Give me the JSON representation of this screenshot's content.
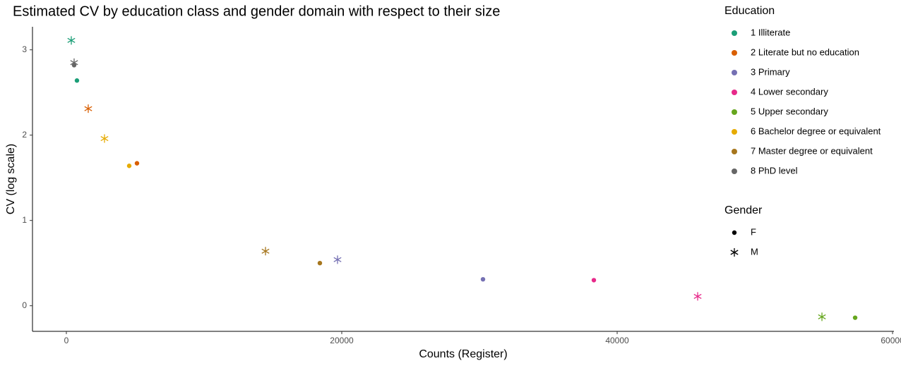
{
  "chart_data": {
    "type": "scatter",
    "title": "Estimated CV by education class and gender domain with respect to their size",
    "x_label": "Counts (Register)",
    "y_label": "CV (log scale)",
    "xlim": [
      -2460,
      60100
    ],
    "ylim": [
      -0.3,
      3.27
    ],
    "xticks": [
      0,
      20000,
      40000,
      60000
    ],
    "yticks": [
      0,
      1,
      2,
      3
    ],
    "legend_title": "Education",
    "shape_legend": {
      "title": "Gender",
      "labels": [
        "F",
        "M"
      ]
    },
    "series": [
      {
        "name": "1 Illiterate",
        "color": "#1b9e77",
        "gender": [
          "M",
          "F"
        ],
        "x": [
          359,
          769
        ],
        "values": [
          3.11,
          2.64
        ]
      },
      {
        "name": "2 Literate but no education",
        "color": "#d95f02",
        "gender": [
          "M",
          "F"
        ],
        "x": [
          1590,
          5128
        ],
        "values": [
          2.31,
          1.67
        ]
      },
      {
        "name": "3 Primary",
        "color": "#7570b3",
        "gender": [
          "M",
          "F"
        ],
        "x": [
          19692,
          30256
        ],
        "values": [
          0.54,
          0.31
        ]
      },
      {
        "name": "4 Lower secondary",
        "color": "#e7298a",
        "gender": [
          "F",
          "M"
        ],
        "x": [
          38308,
          45846
        ],
        "values": [
          0.3,
          0.11
        ]
      },
      {
        "name": "5 Upper secondary",
        "color": "#66a61e",
        "gender": [
          "M",
          "F"
        ],
        "x": [
          54872,
          57282
        ],
        "values": [
          -0.13,
          -0.14
        ]
      },
      {
        "name": "6 Bachelor degree or equivalent",
        "color": "#e6ab02",
        "gender": [
          "M",
          "F"
        ],
        "x": [
          2769,
          4564
        ],
        "values": [
          1.96,
          1.64
        ]
      },
      {
        "name": "7 Master degree or equivalent",
        "color": "#a6761d",
        "gender": [
          "M",
          "F"
        ],
        "x": [
          14462,
          18410
        ],
        "values": [
          0.64,
          0.5
        ]
      },
      {
        "name": "8 PhD level",
        "color": "#666666",
        "gender": [
          "M",
          "F"
        ],
        "x": [
          564,
          564
        ],
        "values": [
          2.85,
          2.82
        ]
      }
    ]
  }
}
